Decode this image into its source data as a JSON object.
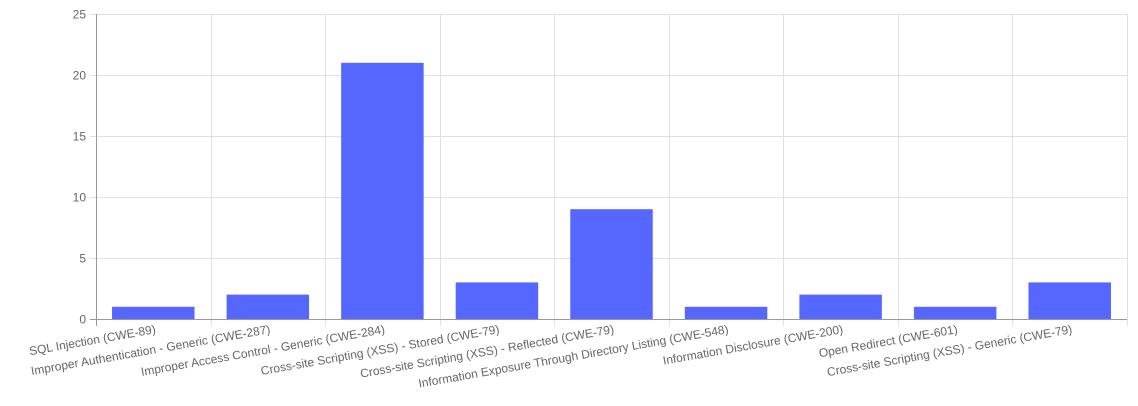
{
  "chart_data": {
    "type": "bar",
    "title": "",
    "xlabel": "",
    "ylabel": "",
    "ylim": [
      0,
      25
    ],
    "y_ticks": [
      0,
      5,
      10,
      15,
      20,
      25
    ],
    "grid": true,
    "legend": "none",
    "bar_color": "#5567ff",
    "grid_color": "#e0e0e0",
    "axis_color": "#999999",
    "categories": [
      "SQL Injection (CWE-89)",
      "Improper Authentication - Generic (CWE-287)",
      "Improper Access Control - Generic (CWE-284)",
      "Cross-site Scripting (XSS) - Stored (CWE-79)",
      "Cross-site Scripting (XSS) - Reflected (CWE-79)",
      "Information Exposure Through Directory Listing (CWE-548)",
      "Information Disclosure (CWE-200)",
      "Open Redirect (CWE-601)",
      "Cross-site Scripting (XSS) - Generic (CWE-79)"
    ],
    "values": [
      1,
      2,
      21,
      3,
      9,
      1,
      2,
      1,
      3
    ]
  }
}
